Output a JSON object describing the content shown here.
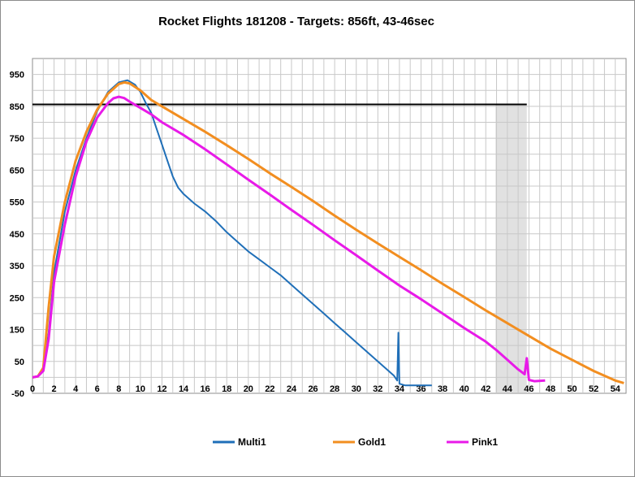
{
  "chart_data": {
    "type": "line",
    "title": "Rocket Flights 181208 - Targets: 856ft, 43-46sec",
    "xlabel": "",
    "ylabel": "",
    "xlim": [
      0,
      55
    ],
    "ylim": [
      -50,
      1000
    ],
    "x_ticks": [
      0,
      2,
      4,
      6,
      8,
      10,
      12,
      14,
      16,
      18,
      20,
      22,
      24,
      26,
      28,
      30,
      32,
      34,
      36,
      38,
      40,
      42,
      44,
      46,
      48,
      50,
      52,
      54
    ],
    "y_ticks": [
      -50,
      50,
      150,
      250,
      350,
      450,
      550,
      650,
      750,
      850,
      950
    ],
    "grid": true,
    "legend_position": "bottom",
    "target_line": {
      "y": 856,
      "x_start": 0,
      "x_end": 45.8,
      "color": "#000000"
    },
    "target_band": {
      "x_start": 42.9,
      "x_end": 45.8,
      "color": "#c8c8c8"
    },
    "series": [
      {
        "name": "Multi1",
        "color": "#1f6fb8",
        "points": [
          [
            0,
            0
          ],
          [
            0.5,
            3
          ],
          [
            1,
            25
          ],
          [
            1.5,
            140
          ],
          [
            2,
            330
          ],
          [
            3,
            520
          ],
          [
            4,
            650
          ],
          [
            5,
            750
          ],
          [
            6,
            835
          ],
          [
            7,
            895
          ],
          [
            8,
            925
          ],
          [
            8.8,
            932
          ],
          [
            9.5,
            918
          ],
          [
            10,
            895
          ],
          [
            10.5,
            860
          ],
          [
            11,
            830
          ],
          [
            11.5,
            780
          ],
          [
            12,
            730
          ],
          [
            12.5,
            680
          ],
          [
            13,
            630
          ],
          [
            13.5,
            595
          ],
          [
            14,
            575
          ],
          [
            15,
            545
          ],
          [
            16,
            520
          ],
          [
            17,
            490
          ],
          [
            18,
            455
          ],
          [
            19,
            425
          ],
          [
            20,
            395
          ],
          [
            21,
            370
          ],
          [
            22,
            345
          ],
          [
            23,
            320
          ],
          [
            24,
            290
          ],
          [
            25,
            260
          ],
          [
            26,
            230
          ],
          [
            27,
            200
          ],
          [
            28,
            170
          ],
          [
            29,
            140
          ],
          [
            30,
            110
          ],
          [
            31,
            80
          ],
          [
            32,
            50
          ],
          [
            33,
            20
          ],
          [
            33.5,
            5
          ],
          [
            33.8,
            -10
          ],
          [
            33.9,
            140
          ],
          [
            34,
            -20
          ],
          [
            34.5,
            -25
          ],
          [
            35.5,
            -25
          ],
          [
            37,
            -25
          ]
        ]
      },
      {
        "name": "Gold1",
        "color": "#f28e20",
        "points": [
          [
            0,
            0
          ],
          [
            0.5,
            3
          ],
          [
            1,
            30
          ],
          [
            1.5,
            220
          ],
          [
            2,
            380
          ],
          [
            3,
            550
          ],
          [
            4,
            680
          ],
          [
            5,
            770
          ],
          [
            6,
            840
          ],
          [
            7,
            890
          ],
          [
            8,
            920
          ],
          [
            8.5,
            925
          ],
          [
            9,
            922
          ],
          [
            10,
            900
          ],
          [
            11,
            870
          ],
          [
            12,
            850
          ],
          [
            14,
            810
          ],
          [
            16,
            770
          ],
          [
            18,
            728
          ],
          [
            20,
            685
          ],
          [
            22,
            640
          ],
          [
            24,
            597
          ],
          [
            26,
            553
          ],
          [
            28,
            507
          ],
          [
            30,
            463
          ],
          [
            32,
            420
          ],
          [
            34,
            378
          ],
          [
            36,
            336
          ],
          [
            38,
            293
          ],
          [
            40,
            252
          ],
          [
            42,
            210
          ],
          [
            44,
            170
          ],
          [
            46,
            130
          ],
          [
            48,
            90
          ],
          [
            50,
            55
          ],
          [
            52,
            20
          ],
          [
            54,
            -10
          ],
          [
            54.8,
            -18
          ]
        ]
      },
      {
        "name": "Pink1",
        "color": "#e81ae8",
        "points": [
          [
            0,
            0
          ],
          [
            0.5,
            3
          ],
          [
            1,
            20
          ],
          [
            1.5,
            120
          ],
          [
            2,
            300
          ],
          [
            3,
            480
          ],
          [
            4,
            630
          ],
          [
            5,
            740
          ],
          [
            6,
            815
          ],
          [
            7,
            860
          ],
          [
            7.5,
            875
          ],
          [
            8,
            880
          ],
          [
            8.5,
            876
          ],
          [
            9,
            865
          ],
          [
            10,
            845
          ],
          [
            11,
            825
          ],
          [
            12,
            800
          ],
          [
            14,
            760
          ],
          [
            16,
            715
          ],
          [
            18,
            668
          ],
          [
            20,
            620
          ],
          [
            22,
            573
          ],
          [
            24,
            525
          ],
          [
            26,
            478
          ],
          [
            28,
            430
          ],
          [
            30,
            383
          ],
          [
            32,
            335
          ],
          [
            34,
            288
          ],
          [
            36,
            245
          ],
          [
            38,
            200
          ],
          [
            40,
            155
          ],
          [
            42,
            112
          ],
          [
            43,
            85
          ],
          [
            44,
            55
          ],
          [
            45,
            25
          ],
          [
            45.6,
            10
          ],
          [
            45.8,
            60
          ],
          [
            46,
            -8
          ],
          [
            46.5,
            -12
          ],
          [
            47.5,
            -10
          ]
        ]
      }
    ]
  }
}
